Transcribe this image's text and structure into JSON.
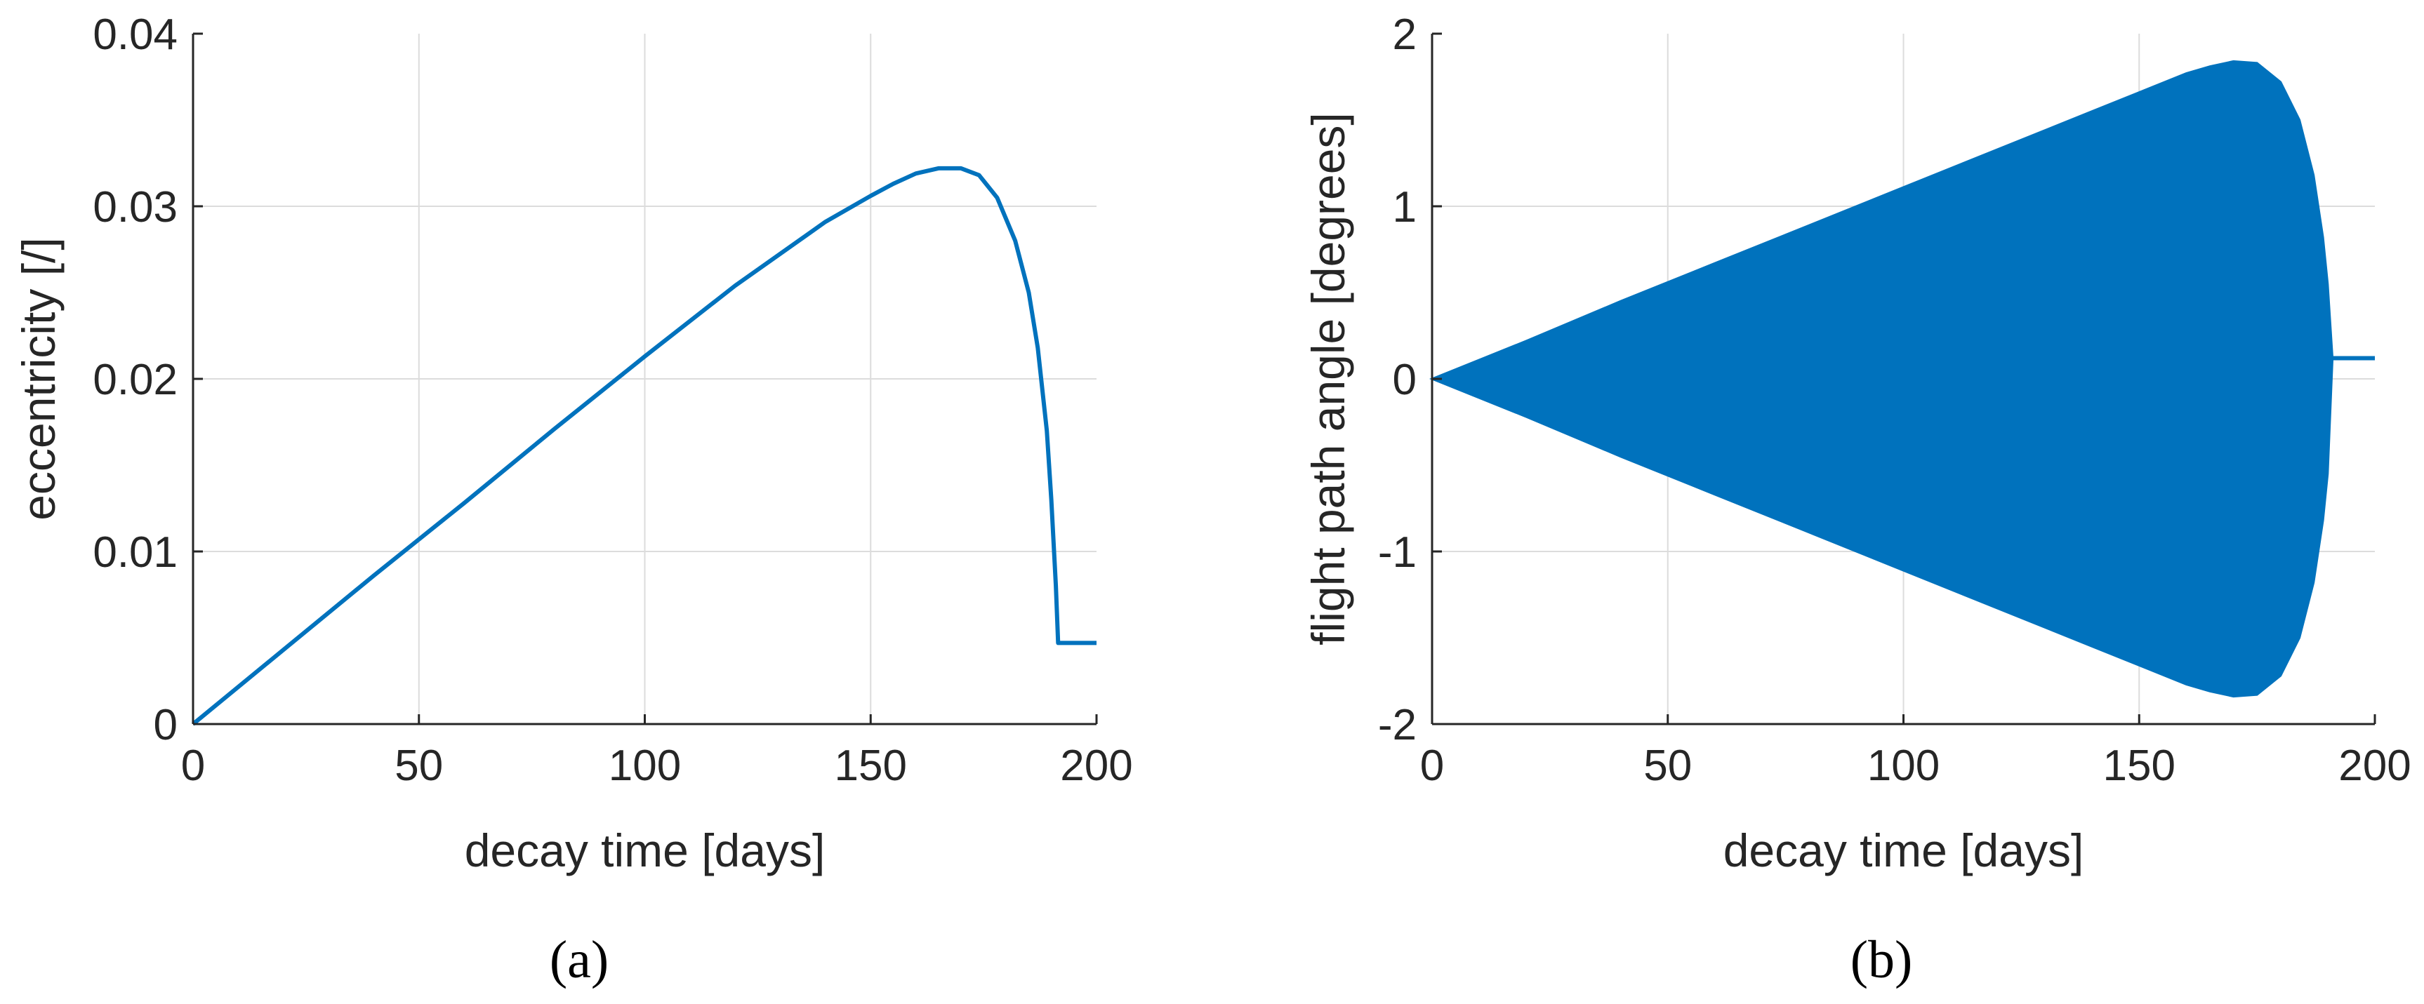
{
  "colors": {
    "line": "#0072BD",
    "axis": "#262626",
    "grid": "#dcdcdc",
    "background": "#ffffff"
  },
  "chart_data": [
    {
      "type": "line",
      "panel": "a",
      "caption": "(a)",
      "xlabel": "decay time [days]",
      "ylabel": "eccentricity [/]",
      "xlim": [
        0,
        200
      ],
      "ylim": [
        0,
        0.04
      ],
      "xticks": [
        "0",
        "50",
        "100",
        "150",
        "200"
      ],
      "yticks": [
        "0",
        "0.01",
        "0.02",
        "0.03",
        "0.04"
      ],
      "grid": true,
      "legend": "none",
      "series": [
        {
          "x": [
            0,
            20,
            40,
            60,
            80,
            100,
            120,
            140,
            150,
            155,
            160,
            165,
            170,
            174,
            178,
            182,
            185,
            187,
            189,
            190,
            191,
            191.5,
            192,
            195,
            200
          ],
          "y": [
            0,
            0.0043,
            0.0086,
            0.0128,
            0.0171,
            0.0213,
            0.0254,
            0.0291,
            0.0306,
            0.0313,
            0.0319,
            0.0322,
            0.0322,
            0.0318,
            0.0305,
            0.028,
            0.025,
            0.0218,
            0.017,
            0.013,
            0.008,
            0.0047,
            0.0047,
            0.0047,
            0.0047
          ]
        }
      ]
    },
    {
      "type": "area",
      "panel": "b",
      "caption": "(b)",
      "xlabel": "decay time [days]",
      "ylabel": "flight path angle [degrees]",
      "xlim": [
        0,
        200
      ],
      "ylim": [
        -2,
        2
      ],
      "xticks": [
        "0",
        "50",
        "100",
        "150",
        "200"
      ],
      "yticks": [
        "-2",
        "-1",
        "0",
        "1",
        "2"
      ],
      "grid": true,
      "legend": "none",
      "note": "dense oscillation envelope",
      "series": [
        {
          "x": [
            0,
            20,
            40,
            60,
            80,
            100,
            120,
            140,
            150,
            160,
            165,
            170,
            175,
            180,
            184,
            187,
            189,
            190,
            191
          ],
          "upper": [
            0,
            0.22,
            0.45,
            0.67,
            0.89,
            1.11,
            1.33,
            1.55,
            1.66,
            1.77,
            1.81,
            1.84,
            1.83,
            1.72,
            1.5,
            1.18,
            0.82,
            0.55,
            0.12
          ],
          "lower": [
            0,
            -0.22,
            -0.45,
            -0.67,
            -0.89,
            -1.11,
            -1.33,
            -1.55,
            -1.66,
            -1.77,
            -1.81,
            -1.84,
            -1.83,
            -1.72,
            -1.5,
            -1.18,
            -0.82,
            -0.55,
            0.12
          ],
          "tail": {
            "x": [
              191,
              200
            ],
            "y": [
              0.12,
              0.12
            ]
          }
        }
      ]
    }
  ]
}
